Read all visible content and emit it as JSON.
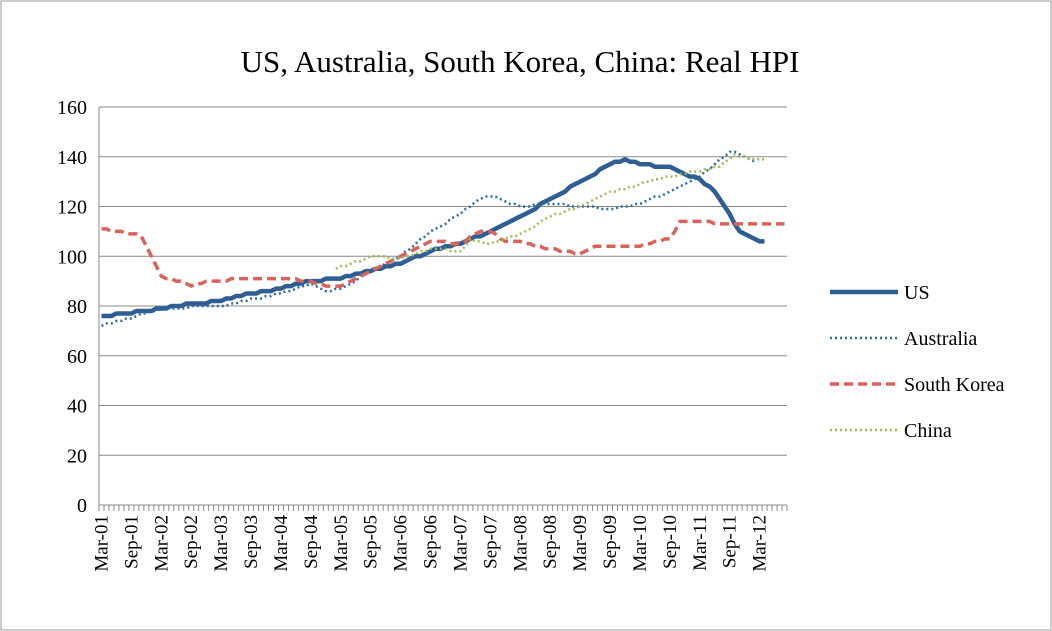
{
  "chart_data": {
    "type": "line",
    "title": "US, Australia, South Korea, China: Real HPI",
    "categories": [
      "Mar-01",
      null,
      null,
      null,
      null,
      null,
      "Sep-01",
      null,
      null,
      null,
      null,
      null,
      "Mar-02",
      null,
      null,
      null,
      null,
      null,
      "Sep-02",
      null,
      null,
      null,
      null,
      null,
      "Mar-03",
      null,
      null,
      null,
      null,
      null,
      "Sep-03",
      null,
      null,
      null,
      null,
      null,
      "Mar-04",
      null,
      null,
      null,
      null,
      null,
      "Sep-04",
      null,
      null,
      null,
      null,
      null,
      "Mar-05",
      null,
      null,
      null,
      null,
      null,
      "Sep-05",
      null,
      null,
      null,
      null,
      null,
      "Mar-06",
      null,
      null,
      null,
      null,
      null,
      "Sep-06",
      null,
      null,
      null,
      null,
      null,
      "Mar-07",
      null,
      null,
      null,
      null,
      null,
      "Sep-07",
      null,
      null,
      null,
      null,
      null,
      "Mar-08",
      null,
      null,
      null,
      null,
      null,
      "Sep-08",
      null,
      null,
      null,
      null,
      null,
      "Mar-09",
      null,
      null,
      null,
      null,
      null,
      "Sep-09",
      null,
      null,
      null,
      null,
      null,
      "Mar-10",
      null,
      null,
      null,
      null,
      null,
      "Sep-10",
      null,
      null,
      null,
      null,
      null,
      "Mar-11",
      null,
      null,
      null,
      null,
      null,
      "Sep-11",
      null,
      null,
      null,
      null,
      null,
      "Mar-12",
      null,
      null,
      null,
      null,
      null
    ],
    "series": [
      {
        "name": "US",
        "color": "#2e5e94",
        "dash": "none",
        "width": 4.5,
        "values": [
          76,
          76,
          76,
          77,
          77,
          77,
          77,
          78,
          78,
          78,
          78,
          79,
          79,
          79,
          80,
          80,
          80,
          81,
          81,
          81,
          81,
          81,
          82,
          82,
          82,
          83,
          83,
          84,
          84,
          85,
          85,
          85,
          86,
          86,
          86,
          87,
          87,
          88,
          88,
          89,
          89,
          90,
          90,
          90,
          90,
          91,
          91,
          91,
          91,
          92,
          92,
          93,
          93,
          94,
          94,
          95,
          95,
          96,
          96,
          97,
          97,
          98,
          99,
          100,
          100,
          101,
          102,
          103,
          103,
          104,
          104,
          105,
          105,
          106,
          107,
          108,
          108,
          109,
          110,
          111,
          112,
          113,
          114,
          115,
          116,
          117,
          118,
          119,
          121,
          122,
          123,
          124,
          125,
          126,
          128,
          129,
          130,
          131,
          132,
          133,
          135,
          136,
          137,
          138,
          138,
          139,
          138,
          138,
          137,
          137,
          137,
          136,
          136,
          136,
          136,
          135,
          134,
          133,
          132,
          132,
          131,
          129,
          128,
          126,
          123,
          120,
          117,
          113,
          110,
          109,
          108,
          107,
          106,
          106,
          null,
          null,
          null,
          null
        ]
      },
      {
        "name": "Australia",
        "color": "#2e6aa8",
        "dash": "2 3",
        "width": 2.5,
        "values": [
          72,
          73,
          73,
          74,
          74,
          75,
          75,
          76,
          77,
          77,
          78,
          78,
          79,
          79,
          79,
          79,
          79,
          79,
          80,
          80,
          80,
          80,
          80,
          80,
          80,
          80,
          81,
          81,
          82,
          82,
          83,
          83,
          83,
          84,
          84,
          85,
          85,
          86,
          86,
          87,
          88,
          88,
          89,
          88,
          87,
          86,
          86,
          87,
          87,
          88,
          89,
          90,
          92,
          93,
          94,
          95,
          96,
          97,
          98,
          99,
          100,
          102,
          103,
          105,
          107,
          108,
          110,
          111,
          112,
          113,
          115,
          116,
          117,
          119,
          120,
          122,
          123,
          124,
          124,
          124,
          123,
          122,
          121,
          121,
          120,
          120,
          120,
          121,
          121,
          121,
          121,
          121,
          121,
          121,
          120,
          120,
          120,
          120,
          120,
          120,
          119,
          119,
          119,
          119,
          120,
          120,
          120,
          121,
          121,
          122,
          123,
          124,
          124,
          125,
          126,
          127,
          128,
          129,
          130,
          131,
          132,
          134,
          135,
          137,
          139,
          140,
          142,
          142,
          141,
          140,
          139,
          138,
          null,
          null,
          null,
          null,
          null,
          null
        ]
      },
      {
        "name": "South Korea",
        "color": "#d9625b",
        "dash": "9 5",
        "width": 3.5,
        "values": [
          111,
          111,
          110,
          110,
          110,
          109,
          109,
          109,
          108,
          104,
          100,
          96,
          92,
          91,
          91,
          90,
          90,
          89,
          88,
          89,
          89,
          90,
          90,
          90,
          90,
          90,
          91,
          91,
          91,
          91,
          91,
          91,
          91,
          91,
          91,
          91,
          91,
          91,
          91,
          91,
          90,
          90,
          90,
          89,
          89,
          88,
          88,
          88,
          88,
          89,
          90,
          91,
          92,
          93,
          94,
          95,
          96,
          97,
          98,
          99,
          100,
          101,
          102,
          103,
          104,
          105,
          106,
          106,
          106,
          106,
          105,
          105,
          105,
          106,
          108,
          109,
          110,
          110,
          110,
          109,
          107,
          106,
          106,
          106,
          106,
          105,
          105,
          104,
          104,
          103,
          103,
          103,
          102,
          102,
          102,
          101,
          101,
          102,
          103,
          104,
          104,
          104,
          104,
          104,
          104,
          104,
          104,
          104,
          104,
          105,
          105,
          106,
          106,
          107,
          107,
          110,
          114,
          114,
          114,
          114,
          114,
          114,
          114,
          113,
          113,
          113,
          113,
          113,
          113,
          113,
          113,
          113,
          113,
          113,
          113,
          113,
          113,
          113
        ]
      },
      {
        "name": "China",
        "color": "#9bbb59",
        "dash": "2 3",
        "width": 2.5,
        "values": [
          null,
          null,
          null,
          null,
          null,
          null,
          null,
          null,
          null,
          null,
          null,
          null,
          null,
          null,
          null,
          null,
          null,
          null,
          null,
          null,
          null,
          null,
          null,
          null,
          null,
          null,
          null,
          null,
          null,
          null,
          null,
          null,
          null,
          null,
          null,
          null,
          null,
          null,
          null,
          null,
          null,
          null,
          null,
          null,
          null,
          null,
          null,
          95,
          96,
          96,
          97,
          98,
          98,
          99,
          100,
          100,
          100,
          100,
          99,
          99,
          99,
          100,
          100,
          101,
          102,
          102,
          103,
          103,
          103,
          103,
          102,
          102,
          102,
          104,
          107,
          106,
          106,
          105,
          105,
          106,
          106,
          107,
          108,
          108,
          109,
          110,
          111,
          112,
          114,
          115,
          116,
          117,
          117,
          118,
          119,
          119,
          120,
          121,
          122,
          123,
          124,
          125,
          126,
          126,
          127,
          127,
          128,
          128,
          129,
          130,
          130,
          131,
          131,
          132,
          132,
          132,
          133,
          133,
          134,
          134,
          134,
          135,
          135,
          136,
          136,
          138,
          139,
          141,
          140,
          140,
          139,
          139,
          139,
          139,
          null,
          null,
          null,
          null
        ]
      }
    ],
    "ylim": [
      0,
      160
    ],
    "yticks": [
      0,
      20,
      40,
      60,
      80,
      100,
      120,
      140,
      160
    ],
    "grid": true,
    "legend": "right"
  }
}
